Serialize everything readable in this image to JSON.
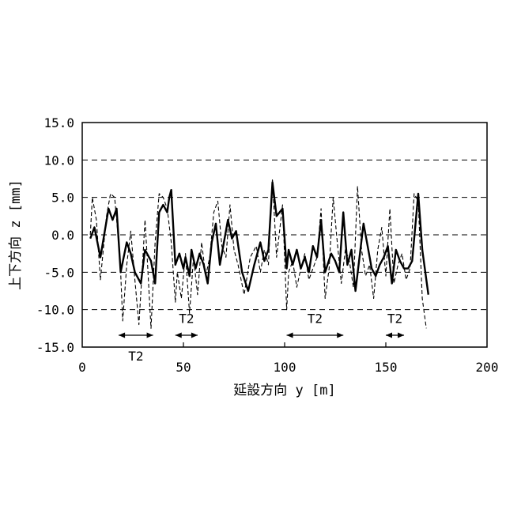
{
  "chart_data": {
    "type": "line",
    "xlabel": "延設方向 y [m]",
    "ylabel": "上下方向 z [mm]",
    "xlim": [
      0,
      200
    ],
    "ylim": [
      -15,
      15
    ],
    "x_ticks": [
      "0",
      "50",
      "100",
      "150",
      "200"
    ],
    "y_ticks": [
      "15.0",
      "10.0",
      "5.0",
      "0.0",
      "-5.0",
      "-10.0",
      "-15.0"
    ],
    "hgrid_dashed_at": [
      10,
      5,
      0,
      -5,
      -10
    ],
    "grid": "horizontal dashed",
    "legend": "none",
    "series": [
      {
        "style": "solid-bold",
        "x": [
          4,
          6,
          9,
          13,
          15,
          17,
          19,
          22,
          24,
          26,
          29,
          31,
          34,
          36,
          38,
          40,
          42,
          43,
          44,
          46,
          48,
          50,
          51,
          53,
          54,
          56,
          58,
          60,
          62,
          64,
          66,
          68,
          70,
          72,
          74,
          76,
          79,
          82,
          85,
          88,
          90,
          92,
          94,
          96,
          99,
          101,
          102,
          104,
          106,
          108,
          110,
          112,
          114,
          116,
          118,
          120,
          123,
          125,
          127,
          129,
          131,
          133,
          135,
          137,
          139,
          141,
          143,
          145,
          147,
          149,
          151,
          153,
          155,
          157,
          159,
          161,
          163,
          166,
          168,
          171
        ],
        "y": [
          -0.5,
          1.0,
          -3.0,
          3.5,
          2.0,
          3.5,
          -5.0,
          -1.0,
          -2.5,
          -5.0,
          -6.5,
          -2.0,
          -3.5,
          -6.5,
          3.0,
          4.0,
          3.0,
          5.0,
          6.0,
          -4.0,
          -2.5,
          -4.5,
          -3.0,
          -5.5,
          -2.0,
          -4.5,
          -2.5,
          -4.0,
          -6.5,
          -1.0,
          1.5,
          -4.0,
          -1.0,
          2.0,
          -0.5,
          0.5,
          -5.0,
          -7.5,
          -4.0,
          -1.0,
          -3.5,
          -2.0,
          7.0,
          2.5,
          3.5,
          -4.5,
          -2.0,
          -4.0,
          -2.0,
          -4.5,
          -3.0,
          -5.0,
          -1.5,
          -3.0,
          2.0,
          -5.0,
          -2.5,
          -3.5,
          -5.0,
          3.0,
          -4.0,
          -2.0,
          -7.5,
          -3.0,
          1.5,
          -1.5,
          -4.5,
          -5.5,
          -4.0,
          -3.0,
          -1.5,
          -6.5,
          -2.0,
          -3.5,
          -4.5,
          -4.5,
          -3.5,
          5.5,
          -2.0,
          -8.0
        ]
      },
      {
        "style": "dashed-thin",
        "x": [
          4,
          5,
          7,
          9,
          12,
          14,
          16,
          18,
          19,
          20,
          22,
          24,
          26,
          28,
          30,
          31,
          32,
          34,
          36,
          38,
          40,
          42,
          44,
          46,
          47,
          49,
          51,
          53,
          55,
          57,
          59,
          61,
          63,
          65,
          67,
          69,
          71,
          73,
          75,
          77,
          80,
          83,
          86,
          88,
          90,
          92,
          94,
          96,
          99,
          101,
          102,
          104,
          106,
          108,
          110,
          112,
          114,
          116,
          118,
          120,
          122,
          124,
          126,
          128,
          130,
          132,
          134,
          136,
          138,
          140,
          142,
          144,
          146,
          148,
          150,
          152,
          154,
          156,
          158,
          160,
          162,
          164,
          166,
          168,
          170
        ],
        "y": [
          0.0,
          5.0,
          2.0,
          -6.0,
          2.5,
          5.5,
          5.0,
          -1.0,
          -5.0,
          -11.5,
          -4.0,
          0.5,
          -6.0,
          -12.0,
          -3.0,
          2.0,
          -2.5,
          -12.5,
          -1.0,
          5.5,
          5.0,
          3.5,
          -1.0,
          -9.0,
          -5.0,
          -8.5,
          -2.5,
          -10.5,
          -3.0,
          -8.0,
          -1.0,
          -5.5,
          -3.0,
          3.0,
          4.5,
          -1.5,
          -3.0,
          4.0,
          -2.0,
          -4.0,
          -8.0,
          -3.0,
          -1.5,
          -5.0,
          -2.0,
          -4.0,
          7.5,
          -3.0,
          4.0,
          -10.0,
          -5.0,
          -3.5,
          -7.0,
          -4.5,
          -2.5,
          -6.0,
          -4.5,
          -3.0,
          3.5,
          -8.5,
          -4.5,
          5.0,
          -1.0,
          -6.5,
          -2.0,
          -3.5,
          -7.0,
          6.5,
          -2.0,
          -5.5,
          -4.0,
          -8.5,
          -2.0,
          1.0,
          -5.5,
          3.5,
          -6.5,
          -4.0,
          -2.5,
          -6.0,
          -4.5,
          5.5,
          4.5,
          -8.5,
          -12.5
        ]
      }
    ],
    "annotations": [
      {
        "label": "T2",
        "x_start": 18,
        "x_end": 35,
        "label_y": -16.8
      },
      {
        "label": "T2",
        "x_start": 46,
        "x_end": 57,
        "label_y": -11.8
      },
      {
        "label": "T2",
        "x_start": 101,
        "x_end": 129,
        "label_y": -11.8
      },
      {
        "label": "T2",
        "x_start": 150,
        "x_end": 159,
        "label_y": -11.8
      }
    ]
  }
}
